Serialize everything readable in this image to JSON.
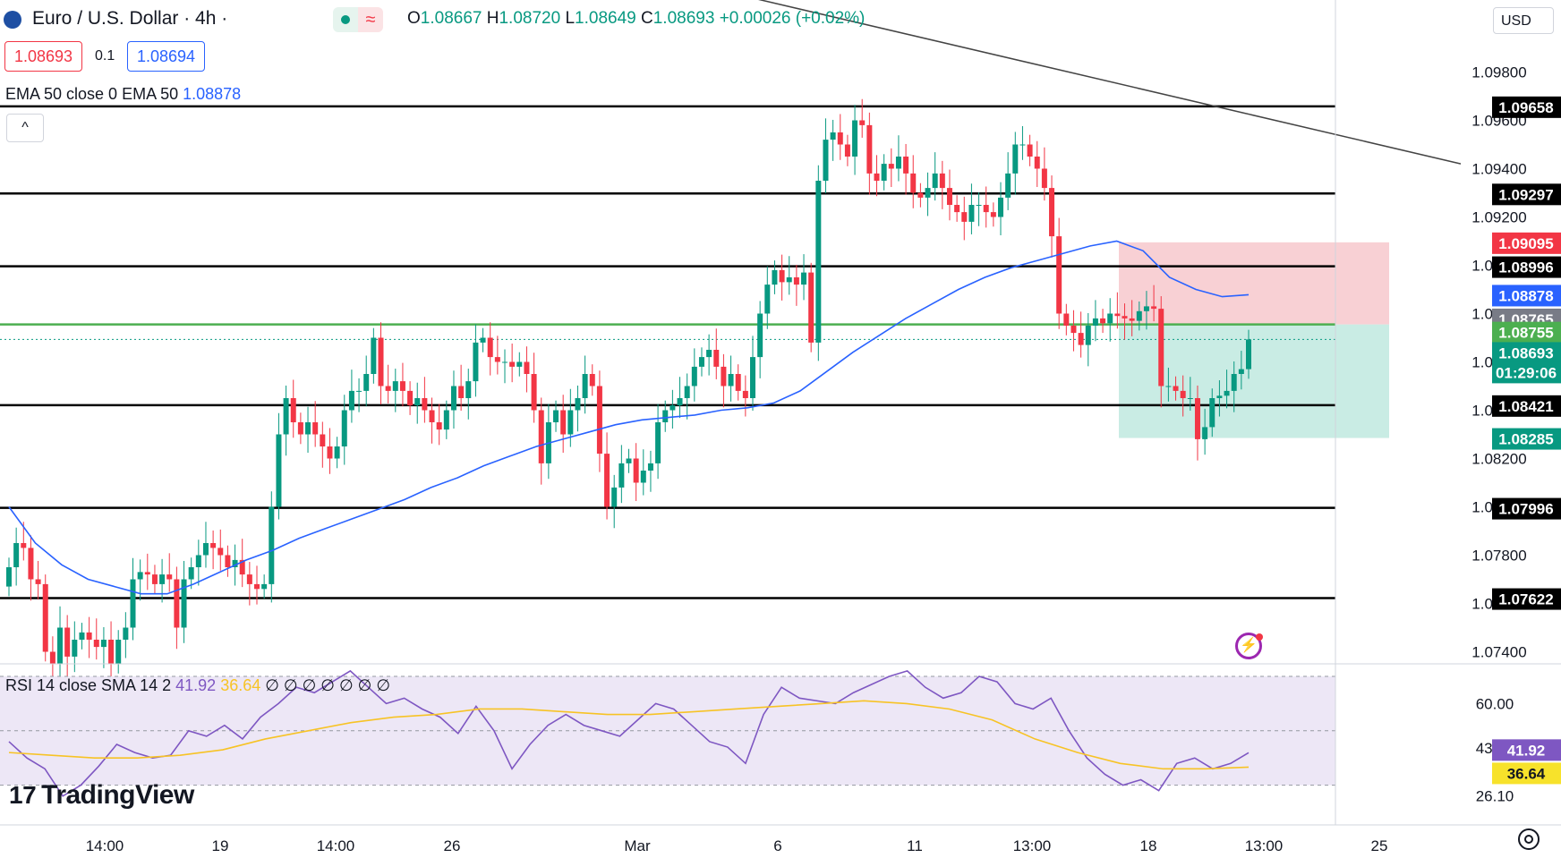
{
  "header": {
    "symbol_title": "Euro / U.S. Dollar · 4h ·",
    "status_icon": "market-open-dot",
    "delay_icon": "≈",
    "ohlc": {
      "o_label": "O",
      "o": "1.08667",
      "h_label": "H",
      "h": "1.08720",
      "l_label": "L",
      "l": "1.08649",
      "c_label": "C",
      "c": "1.08693",
      "change": "+0.00026 (+0.02%)"
    },
    "sell_price": "1.08693",
    "spread": "0.1",
    "buy_price": "1.08694",
    "currency": "USD"
  },
  "indicators": {
    "ema_label": "EMA 50 close 0 EMA 50",
    "ema_value": "1.08878",
    "rsi_label": "RSI 14 close SMA 14 2",
    "rsi_value": "41.92",
    "rsi_sma_value": "36.64",
    "rsi_extra": "∅ ∅ ∅ ∅ ∅ ∅ ∅"
  },
  "collapse_icon": "^",
  "logo_text": "TradingView",
  "colors": {
    "bull": "#089981",
    "bear": "#f23645",
    "ema": "#2962ff",
    "rsi": "#7e57c2",
    "rsi_sma": "#f7c325",
    "green_line": "#4caf50",
    "rsi_band": "#ede7f6",
    "stop_zone": "#f8d0d4",
    "target_zone": "#c9ece4"
  },
  "chart_data": [
    {
      "type": "candlestick",
      "title": "Euro / U.S. Dollar · 4h",
      "ylim": [
        1.0735,
        1.0995
      ],
      "price_axis_ticks": [
        "1.09800",
        "1.09600",
        "1.09400",
        "1.09200",
        "1.09000",
        "1.08800",
        "1.08600",
        "1.08400",
        "1.08200",
        "1.08000",
        "1.07800",
        "1.07600",
        "1.07400"
      ],
      "time_axis_ticks": [
        "14:00",
        "19",
        "14:00",
        "26",
        "Mar",
        "6",
        "11",
        "13:00",
        "18",
        "13:00",
        "25"
      ],
      "horizontal_levels": [
        1.09658,
        1.09297,
        1.08996,
        1.08421,
        1.07996,
        1.07622
      ],
      "green_level": 1.08755,
      "current_price": 1.08693,
      "trendline": {
        "from": [
          0,
          1.1035
        ],
        "to": [
          1,
          1.0942
        ]
      },
      "position_tool": {
        "entry": 1.08755,
        "stop": 1.09095,
        "target": 1.08285
      },
      "price_labels": [
        {
          "value": "1.09658",
          "style": "black"
        },
        {
          "value": "1.09297",
          "style": "black"
        },
        {
          "value": "1.09095",
          "style": "red"
        },
        {
          "value": "1.08996",
          "style": "black"
        },
        {
          "value": "1.08878",
          "style": "blue"
        },
        {
          "value": "1.08765",
          "style": "gray"
        },
        {
          "value": "1.08755",
          "style": "green"
        },
        {
          "value": "1.08693",
          "style": "teal"
        },
        {
          "value": "01:29:06",
          "style": "teal-sub"
        },
        {
          "value": "1.08421",
          "style": "black"
        },
        {
          "value": "1.08285",
          "style": "teal"
        },
        {
          "value": "1.07996",
          "style": "black"
        },
        {
          "value": "1.07622",
          "style": "black"
        }
      ],
      "series": [
        {
          "name": "EUR/USD",
          "close": [
            1.0775,
            1.0785,
            1.0783,
            1.077,
            1.0768,
            1.074,
            1.0735,
            1.075,
            1.0738,
            1.0745,
            1.0748,
            1.0745,
            1.0742,
            1.0745,
            1.0735,
            1.0745,
            1.075,
            1.077,
            1.0773,
            1.0772,
            1.0768,
            1.0772,
            1.077,
            1.075,
            1.077,
            1.0775,
            1.078,
            1.0785,
            1.0783,
            1.078,
            1.0775,
            1.0778,
            1.0772,
            1.0768,
            1.0766,
            1.0768,
            1.08,
            1.083,
            1.0845,
            1.0835,
            1.083,
            1.0835,
            1.083,
            1.0825,
            1.082,
            1.0825,
            1.084,
            1.0848,
            1.0848,
            1.0855,
            1.087,
            1.085,
            1.0848,
            1.0852,
            1.0848,
            1.0842,
            1.0845,
            1.084,
            1.0835,
            1.0832,
            1.084,
            1.085,
            1.0845,
            1.0852,
            1.0868,
            1.087,
            1.0862,
            1.086,
            1.086,
            1.0858,
            1.086,
            1.0855,
            1.084,
            1.0818,
            1.0835,
            1.084,
            1.083,
            1.084,
            1.0845,
            1.0855,
            1.085,
            1.0822,
            1.08,
            1.0808,
            1.0818,
            1.082,
            1.081,
            1.0815,
            1.0818,
            1.0835,
            1.084,
            1.0842,
            1.0845,
            1.085,
            1.0858,
            1.0862,
            1.0865,
            1.0858,
            1.085,
            1.0855,
            1.0848,
            1.0845,
            1.0862,
            1.088,
            1.0892,
            1.0898,
            1.0893,
            1.0895,
            1.0892,
            1.0897,
            1.0868,
            1.0935,
            1.0952,
            1.0955,
            1.095,
            1.0945,
            1.096,
            1.0958,
            1.0938,
            1.0935,
            1.0942,
            1.094,
            1.0945,
            1.0938,
            1.093,
            1.0928,
            1.0932,
            1.0938,
            1.0932,
            1.0925,
            1.0922,
            1.0918,
            1.0925,
            1.0925,
            1.0922,
            1.092,
            1.0928,
            1.0938,
            1.095,
            1.095,
            1.0945,
            1.094,
            1.0932,
            1.0912,
            1.088,
            1.0875,
            1.0872,
            1.0867,
            1.0875,
            1.0878,
            1.0876,
            1.088,
            1.0879,
            1.0878,
            1.0877,
            1.0881,
            1.0883,
            1.0882,
            1.085,
            1.085,
            1.0848,
            1.0845,
            1.0845,
            1.0828,
            1.0833,
            1.0845,
            1.0846,
            1.0848,
            1.0855,
            1.0857,
            1.08693
          ]
        },
        {
          "name": "EMA 50",
          "values": [
            1.08,
            1.0785,
            1.0776,
            1.077,
            1.0767,
            1.0764,
            1.0764,
            1.0768,
            1.0773,
            1.0778,
            1.0782,
            1.0787,
            1.0791,
            1.0795,
            1.0799,
            1.0803,
            1.0808,
            1.0812,
            1.0817,
            1.0821,
            1.0825,
            1.0828,
            1.0831,
            1.0834,
            1.0836,
            1.0837,
            1.0838,
            1.084,
            1.0841,
            1.0843,
            1.0848,
            1.0856,
            1.0864,
            1.0871,
            1.0878,
            1.0884,
            1.089,
            1.0895,
            1.0899,
            1.0902,
            1.0905,
            1.0908,
            1.091,
            1.0906,
            1.0895,
            1.089,
            1.0887,
            1.08878
          ]
        }
      ]
    },
    {
      "type": "line",
      "title": "RSI 14 close SMA 14 2",
      "ylim": [
        20,
        70
      ],
      "axis_ticks": [
        "60.00",
        "43.63",
        "26.10"
      ],
      "bands": [
        30,
        70
      ],
      "value_labels": [
        "41.92",
        "36.64"
      ],
      "series": [
        {
          "name": "RSI",
          "values": [
            46,
            40,
            36,
            26,
            30,
            37,
            45,
            42,
            40,
            41,
            50,
            48,
            52,
            47,
            55,
            60,
            66,
            64,
            68,
            72,
            66,
            60,
            62,
            58,
            55,
            49,
            59,
            50,
            36,
            45,
            52,
            56,
            52,
            50,
            48,
            54,
            60,
            58,
            52,
            46,
            44,
            38,
            56,
            66,
            62,
            61,
            60,
            64,
            67,
            70,
            72,
            66,
            62,
            64,
            70,
            68,
            60,
            58,
            62,
            50,
            40,
            34,
            30,
            32,
            28,
            38,
            40,
            36,
            38,
            41.92
          ]
        },
        {
          "name": "SMA",
          "values": [
            42,
            41,
            40,
            40,
            41,
            43,
            47,
            50,
            53,
            55,
            56,
            58,
            58,
            57,
            56,
            56,
            57,
            58,
            59,
            60,
            61,
            60,
            58,
            54,
            47,
            42,
            38,
            36,
            36,
            36.64
          ]
        }
      ]
    }
  ]
}
